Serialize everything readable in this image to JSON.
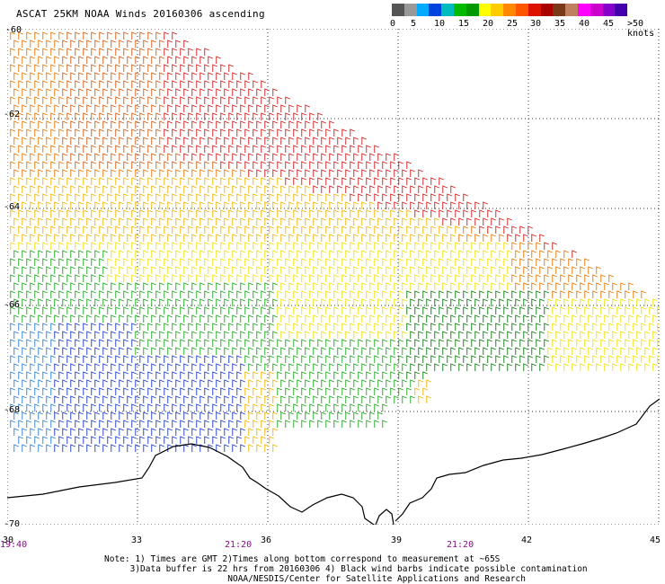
{
  "title": "ASCAT 25KM NOAA Winds 20160306 ascending",
  "legend": {
    "colors": [
      "#555555",
      "#999999",
      "#00aaff",
      "#0044dd",
      "#00bbbb",
      "#00bb00",
      "#009900",
      "#ffff00",
      "#ffcc00",
      "#ff8800",
      "#ff5500",
      "#dd1100",
      "#aa0000",
      "#7a3a1a",
      "#c08060",
      "#ff00ff",
      "#cc00cc",
      "#8800cc",
      "#4400aa"
    ],
    "labels": [
      "0",
      "5",
      "10",
      "15",
      "20",
      "25",
      "30",
      "35",
      "40",
      "45",
      ">50 knots"
    ]
  },
  "axes": {
    "latitudes": [
      "-60",
      "-62",
      "-64",
      "-66",
      "-68",
      "-70"
    ],
    "longitudes": [
      "30",
      "33",
      "36",
      "39",
      "42",
      "45"
    ]
  },
  "times": [
    "19:40",
    "21:20",
    "21:20"
  ],
  "notes": [
    "Note: 1) Times are GMT 2)Times along bottom correspond to measurement at ~65S",
    "     3)Data buffer is 22 hrs from 20160306 4) Black wind barbs indicate possible contamination",
    "                        NOAA/NESDIS/Center for Satellite Applications and Research"
  ]
}
